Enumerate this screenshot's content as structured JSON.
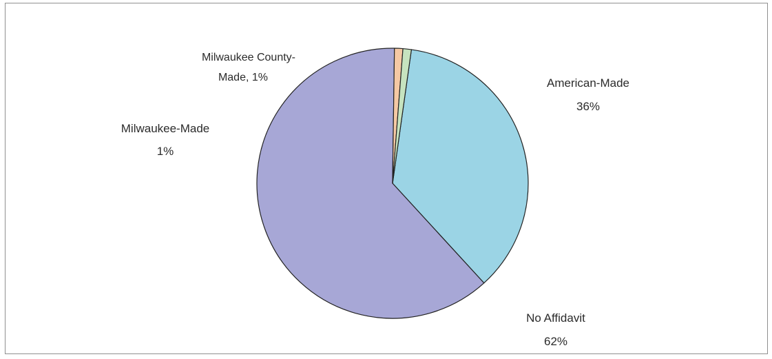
{
  "chart_data": {
    "type": "pie",
    "title": "",
    "slices": [
      {
        "label": "American-Made",
        "value_text": "36%",
        "value": 36,
        "color": "#9bd4e5"
      },
      {
        "label": "No Affidavit",
        "value_text": "62%",
        "value": 62,
        "color": "#a7a7d6"
      },
      {
        "label": "Milwaukee-Made",
        "value_text": "1%",
        "value": 1,
        "color": "#f5c9a4"
      },
      {
        "label": "Milwaukee County-Made",
        "value_text": "1%",
        "value": 1,
        "color": "#c6e3bf"
      }
    ],
    "label_lines": {
      "american_1": "American-Made",
      "american_2": "36%",
      "noaff_1": "No Affidavit",
      "noaff_2": "62%",
      "mke_1": "Milwaukee-Made",
      "mke_2": "1%",
      "county_1": "Milwaukee County-",
      "county_2": "Made, 1%"
    }
  }
}
